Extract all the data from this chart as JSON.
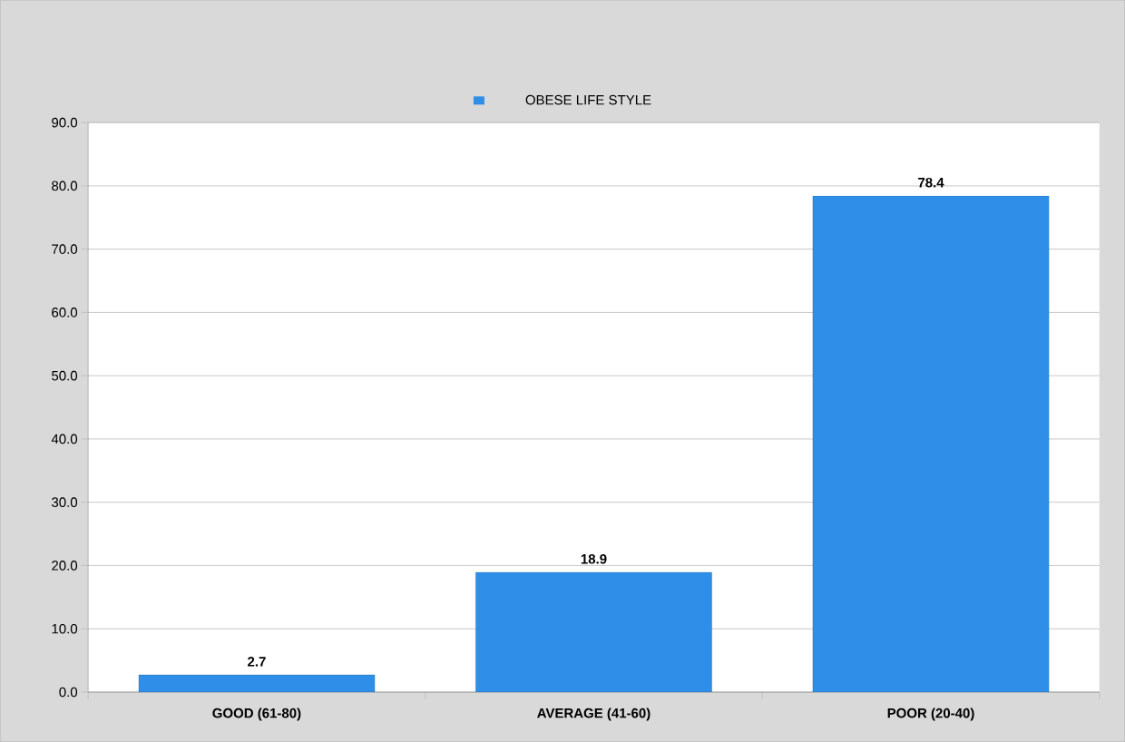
{
  "chart_data": {
    "type": "bar",
    "categories": [
      "GOOD (61-80)",
      "AVERAGE (41-60)",
      "POOR (20-40)"
    ],
    "series": [
      {
        "name": "OBESE LIFE STYLE",
        "color": "#2f8fe8",
        "values": [
          2.7,
          18.9,
          78.4
        ]
      }
    ],
    "ylim": [
      0,
      90
    ],
    "yticks": [
      {
        "value": 0,
        "label": "0.0"
      },
      {
        "value": 10,
        "label": "10.0"
      },
      {
        "value": 20,
        "label": "20.0"
      },
      {
        "value": 30,
        "label": "30.0"
      },
      {
        "value": 40,
        "label": "40.0"
      },
      {
        "value": 50,
        "label": "50.0"
      },
      {
        "value": 60,
        "label": "60.0"
      },
      {
        "value": 70,
        "label": "70.0"
      },
      {
        "value": 80,
        "label": "80.0"
      },
      {
        "value": 90,
        "label": "90.0"
      }
    ],
    "grid": "y",
    "legend": "top",
    "data_labels": true
  }
}
